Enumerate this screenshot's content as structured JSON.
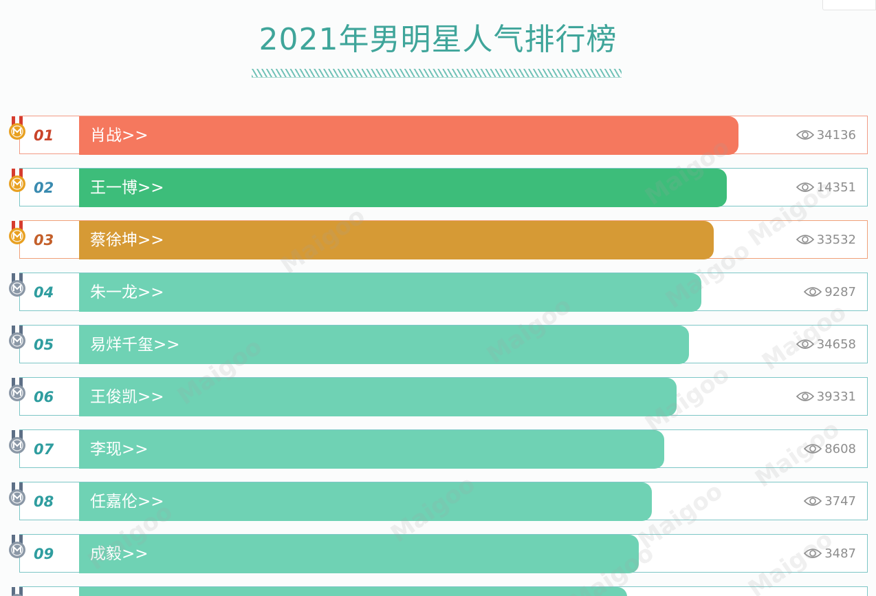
{
  "page": {
    "title": "2021年男明星人气排行榜",
    "watermark_text": "Maigoo",
    "colors": {
      "title": "#3fa59a",
      "bar_rank1": "#f5785e",
      "bar_rank2": "#3dbd7a",
      "bar_rank3": "#d69a35",
      "bar_default": "#6fd2b4",
      "medal_gold": "#e8a020",
      "medal_silver": "#8a97a6"
    }
  },
  "ranking": [
    {
      "rank": "01",
      "name": "肖战>>",
      "views": "34136",
      "bar_fraction": 0.777,
      "medal": "gold"
    },
    {
      "rank": "02",
      "name": "王一博>>",
      "views": "14351",
      "bar_fraction": 0.763,
      "medal": "gold"
    },
    {
      "rank": "03",
      "name": "蔡徐坤>>",
      "views": "33532",
      "bar_fraction": 0.748,
      "medal": "gold"
    },
    {
      "rank": "04",
      "name": "朱一龙>>",
      "views": "9287",
      "bar_fraction": 0.733,
      "medal": "silver"
    },
    {
      "rank": "05",
      "name": "易烊千玺>>",
      "views": "34658",
      "bar_fraction": 0.719,
      "medal": "silver"
    },
    {
      "rank": "06",
      "name": "王俊凯>>",
      "views": "39331",
      "bar_fraction": 0.704,
      "medal": "silver"
    },
    {
      "rank": "07",
      "name": "李现>>",
      "views": "8608",
      "bar_fraction": 0.69,
      "medal": "silver"
    },
    {
      "rank": "08",
      "name": "任嘉伦>>",
      "views": "3747",
      "bar_fraction": 0.675,
      "medal": "silver"
    },
    {
      "rank": "09",
      "name": "成毅>>",
      "views": "3487",
      "bar_fraction": 0.66,
      "medal": "silver"
    },
    {
      "rank": "",
      "name": "",
      "views": "",
      "bar_fraction": 0.646,
      "medal": "silver"
    }
  ]
}
